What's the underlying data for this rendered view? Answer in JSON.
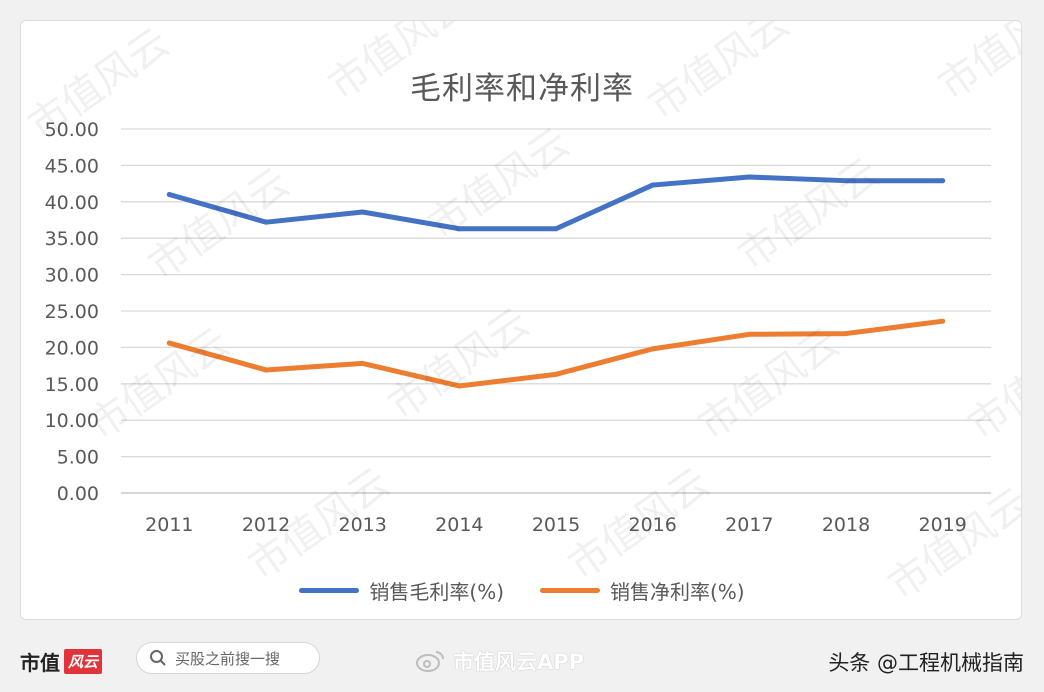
{
  "chart_data": {
    "type": "line",
    "title": "毛利率和净利率",
    "categories": [
      "2011",
      "2012",
      "2013",
      "2014",
      "2015",
      "2016",
      "2017",
      "2018",
      "2019"
    ],
    "ylim": [
      0,
      50
    ],
    "yticks": [
      "0.00",
      "5.00",
      "10.00",
      "15.00",
      "20.00",
      "25.00",
      "30.00",
      "35.00",
      "40.00",
      "45.00",
      "50.00"
    ],
    "grid": true,
    "legend_position": "bottom",
    "series": [
      {
        "name": "销售毛利率(%)",
        "color": "#4472c4",
        "values": [
          41.0,
          37.2,
          38.6,
          36.3,
          36.3,
          42.3,
          43.4,
          42.9,
          42.9
        ]
      },
      {
        "name": "销售净利率(%)",
        "color": "#ed7d31",
        "values": [
          20.6,
          16.9,
          17.8,
          14.7,
          16.3,
          19.8,
          21.8,
          21.9,
          23.6
        ]
      }
    ]
  },
  "watermark": "市值风云",
  "footer": {
    "logo_text": "市值",
    "logo_box": "风云",
    "search_icon": "search-icon",
    "search_placeholder": "买股之前搜一搜",
    "weibo_icon": "weibo-icon",
    "weibo_text": "市值风云APP",
    "author": "头条 @工程机械指南"
  }
}
